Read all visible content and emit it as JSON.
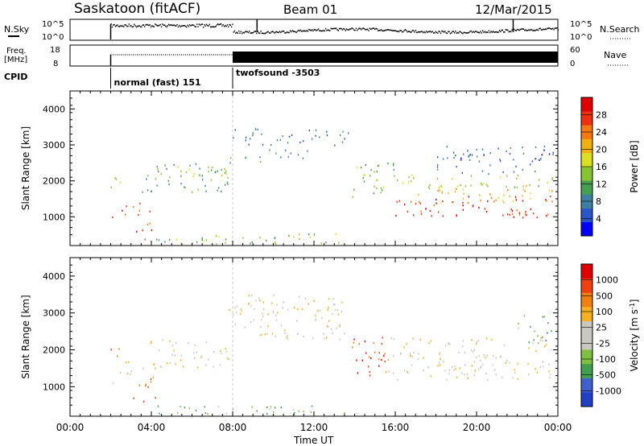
{
  "header": {
    "radar": "Saskatoon (fitACF)",
    "beam": "Beam 01",
    "date": "12/Mar/2015"
  },
  "colors": {
    "axis": "#000000",
    "power_scale": [
      "#0000ff",
      "#2a55c8",
      "#3c7fa0",
      "#44a050",
      "#88c432",
      "#d8e020",
      "#f0b010",
      "#f57810",
      "#ee3010",
      "#e00000"
    ],
    "velocity_scale": [
      "#2040c8",
      "#4060d0",
      "#40a050",
      "#80c040",
      "#c8c8c0",
      "#c8c8c0",
      "#f8b020",
      "#f08010",
      "#f04010",
      "#e00000"
    ]
  },
  "summary": {
    "nsky_label": "N.Sky",
    "nsky_ticks": [
      "10^5",
      "10^0"
    ],
    "nsearch_label": "N.Search",
    "freq_label_1": "Freq.",
    "freq_label_2": "[MHz]",
    "freq_ticks": [
      "18",
      "8"
    ],
    "nave_label": "Nave",
    "nave_ticks": [
      "60",
      "0"
    ],
    "cpid_label": "CPID",
    "modes": [
      {
        "name": "normal (fast) 151",
        "start_h": 2.0
      },
      {
        "name": "twofsound -3503",
        "start_h": 8.0
      }
    ]
  },
  "chart_data": [
    {
      "type": "heatmap",
      "name": "power-panel",
      "ylabel": "Slant Range [km]",
      "ylim": [
        200,
        4500
      ],
      "yticks": [
        1000,
        2000,
        3000,
        4000
      ],
      "xlim": [
        0,
        24
      ],
      "colorbar_label": "Power [dB]",
      "colorbar_ticks": [
        "4",
        "8",
        "12",
        "16",
        "20",
        "24",
        "28"
      ],
      "colorbar_range": [
        0,
        32
      ],
      "bands": [
        {
          "x": [
            2.0,
            2.6
          ],
          "y": [
            1700,
            2200
          ],
          "v": 16
        },
        {
          "x": [
            2.0,
            3.5
          ],
          "y": [
            1000,
            1400
          ],
          "v": 26
        },
        {
          "x": [
            3.0,
            4.0
          ],
          "y": [
            600,
            1200
          ],
          "v": 28
        },
        {
          "x": [
            3.5,
            7.8
          ],
          "y": [
            1700,
            2500
          ],
          "v": 10
        },
        {
          "x": [
            5.0,
            7.8
          ],
          "y": [
            2000,
            2500
          ],
          "v": 16
        },
        {
          "x": [
            7.8,
            9.5
          ],
          "y": [
            2400,
            2700
          ],
          "v": 12
        },
        {
          "x": [
            8.0,
            13.8
          ],
          "y": [
            3000,
            3500
          ],
          "v": 8
        },
        {
          "x": [
            3.5,
            13.8
          ],
          "y": [
            250,
            550
          ],
          "v": 14
        },
        {
          "x": [
            9.5,
            12.0
          ],
          "y": [
            2600,
            2900
          ],
          "v": 8
        },
        {
          "x": [
            13.8,
            16.0
          ],
          "y": [
            1500,
            2600
          ],
          "v": 14
        },
        {
          "x": [
            16.0,
            23.8
          ],
          "y": [
            1800,
            2200
          ],
          "v": 14
        },
        {
          "x": [
            16.0,
            23.8
          ],
          "y": [
            1000,
            1600
          ],
          "v": 28
        },
        {
          "x": [
            17.0,
            23.8
          ],
          "y": [
            1400,
            1900
          ],
          "v": 22
        },
        {
          "x": [
            18.0,
            23.8
          ],
          "y": [
            2200,
            3000
          ],
          "v": 6
        }
      ]
    },
    {
      "type": "heatmap",
      "name": "velocity-panel",
      "ylabel": "Slant Range [km]",
      "ylim": [
        200,
        4500
      ],
      "yticks": [
        1000,
        2000,
        3000,
        4000
      ],
      "xlim": [
        0,
        24
      ],
      "xticks": [
        "00:00",
        "04:00",
        "08:00",
        "12:00",
        "16:00",
        "20:00",
        "00:00"
      ],
      "xlabel": "Time UT",
      "colorbar_label": "Velocity [m s^-1]",
      "colorbar_ticks": [
        "1000",
        "500",
        "100",
        "25",
        "-25",
        "-100",
        "-500",
        "-1000"
      ],
      "colorbar_range": [
        0,
        32
      ],
      "bands": [
        {
          "x": [
            2.0,
            2.6
          ],
          "y": [
            1800,
            2200
          ],
          "v": 26
        },
        {
          "x": [
            2.0,
            3.0
          ],
          "y": [
            1100,
            1700
          ],
          "v": 18
        },
        {
          "x": [
            3.0,
            4.2
          ],
          "y": [
            600,
            1300
          ],
          "v": 26
        },
        {
          "x": [
            3.5,
            7.8
          ],
          "y": [
            1500,
            2300
          ],
          "v": 18
        },
        {
          "x": [
            7.8,
            13.5
          ],
          "y": [
            2300,
            3200
          ],
          "v": 18
        },
        {
          "x": [
            4.0,
            13.8
          ],
          "y": [
            250,
            500
          ],
          "v": 10
        },
        {
          "x": [
            8.0,
            13.5
          ],
          "y": [
            3000,
            3500
          ],
          "v": 18
        },
        {
          "x": [
            13.8,
            15.5
          ],
          "y": [
            1300,
            2500
          ],
          "v": 26
        },
        {
          "x": [
            15.5,
            23.8
          ],
          "y": [
            1200,
            2400
          ],
          "v": 18
        },
        {
          "x": [
            22.0,
            23.8
          ],
          "y": [
            2200,
            3000
          ],
          "v": 10
        }
      ]
    }
  ]
}
